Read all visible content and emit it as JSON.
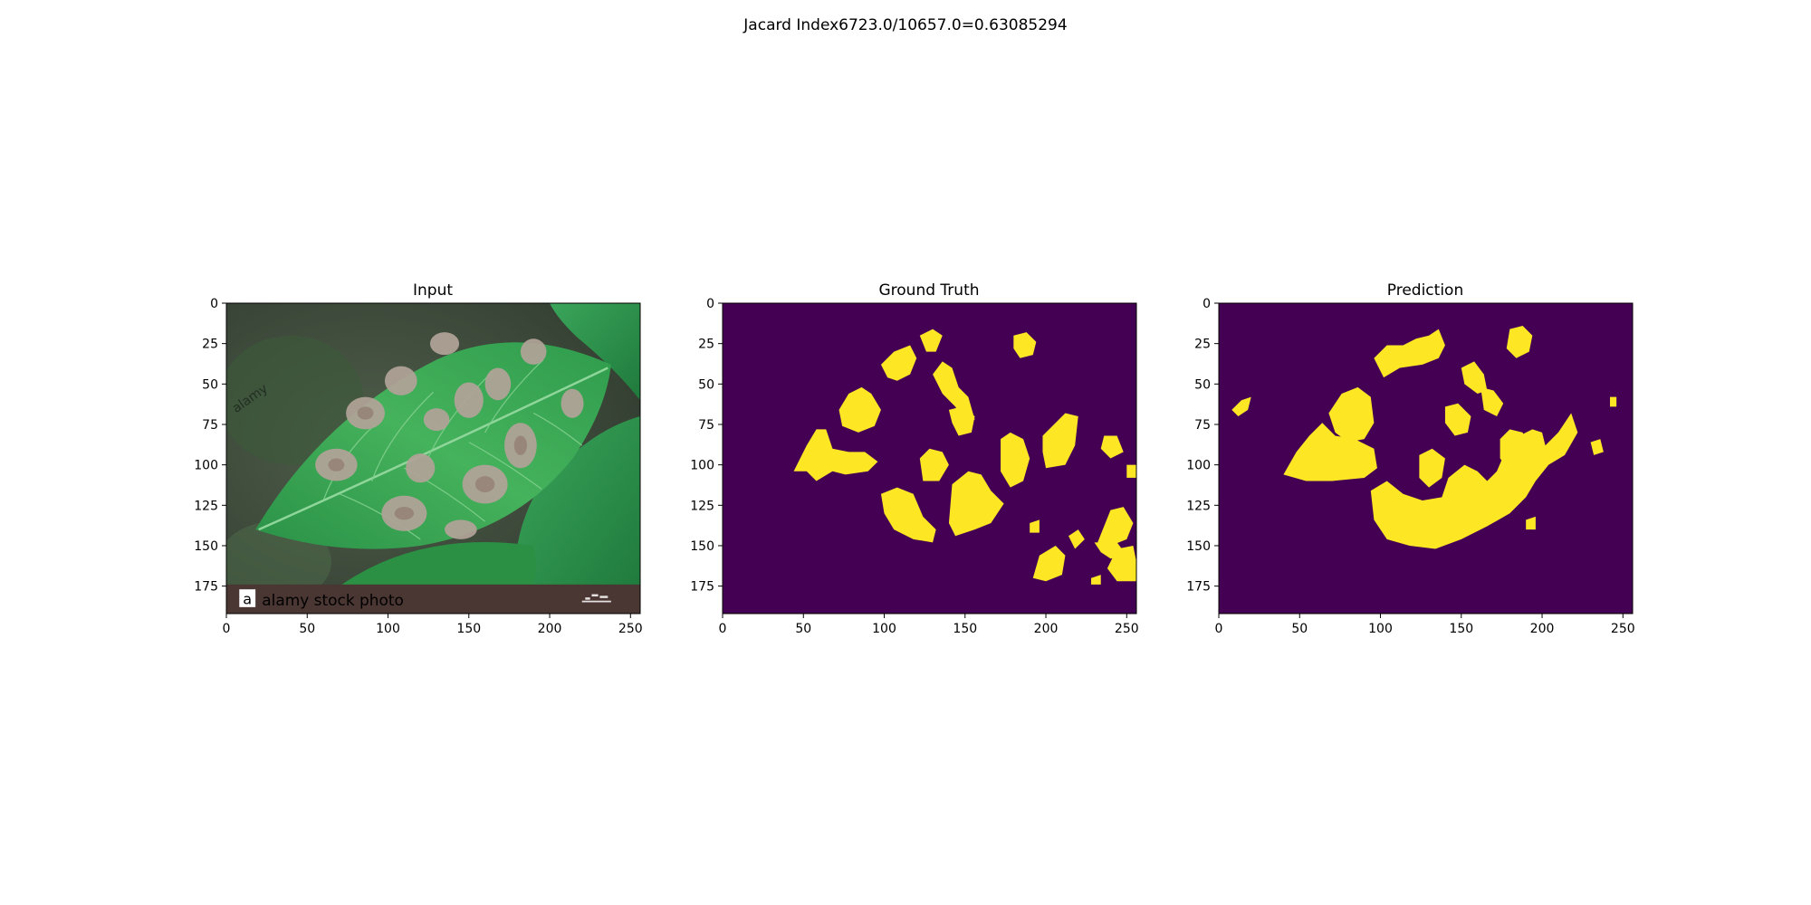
{
  "figure": {
    "suptitle": "Jacard Index6723.0/10657.0=0.63085294"
  },
  "chart_data": [
    {
      "type": "image",
      "title": "Input",
      "xticks": [
        0,
        50,
        100,
        150,
        200,
        250
      ],
      "yticks": [
        0,
        25,
        50,
        75,
        100,
        125,
        150,
        175
      ],
      "xlim": [
        0,
        256
      ],
      "ylim": [
        192,
        0
      ],
      "watermark": "alamy stock photo",
      "watermark_side": "alamy",
      "colors": {
        "leaf": "#2e9a4a",
        "leaf_light": "#5cc36b",
        "soil": "#3e4a3c",
        "lesion": "#a89a8e",
        "banner": "#4a3632"
      }
    },
    {
      "type": "heatmap",
      "title": "Ground Truth",
      "xticks": [
        0,
        50,
        100,
        150,
        200,
        250
      ],
      "yticks": [
        0,
        25,
        50,
        75,
        100,
        125,
        150,
        175
      ],
      "xlim": [
        0,
        256
      ],
      "ylim": [
        192,
        0
      ],
      "colors": {
        "background": "#440154",
        "foreground": "#fde725"
      }
    },
    {
      "type": "heatmap",
      "title": "Prediction",
      "xticks": [
        0,
        50,
        100,
        150,
        200,
        250
      ],
      "yticks": [
        0,
        25,
        50,
        75,
        100,
        125,
        150,
        175
      ],
      "xlim": [
        0,
        256
      ],
      "ylim": [
        192,
        0
      ],
      "colors": {
        "background": "#440154",
        "foreground": "#fde725"
      }
    }
  ]
}
